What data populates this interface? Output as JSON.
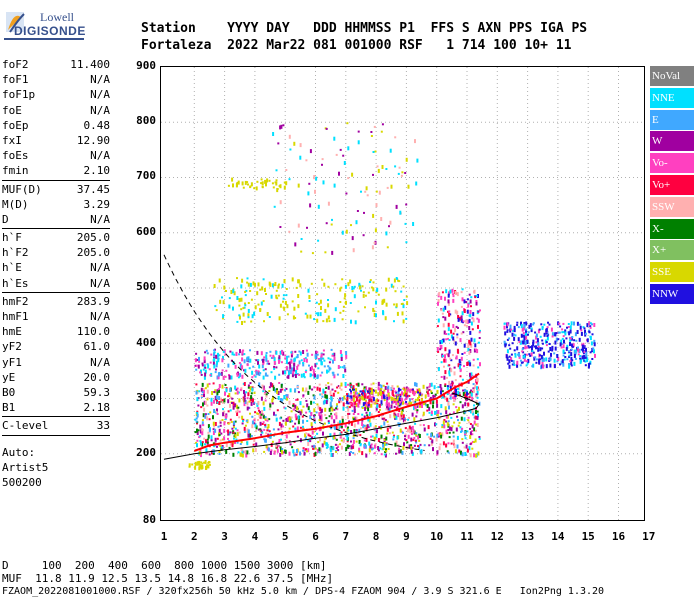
{
  "logo": {
    "line1": "Lowell",
    "line2": "DIGISONDE"
  },
  "header": {
    "line1": "Station    YYYY DAY   DDD HHMMSS P1  FFS S AXN PPS IGA PS",
    "line2": "Fortaleza  2022 Mar22 081 001000 RSF   1 714 100 10+ 11"
  },
  "params": {
    "group1": [
      {
        "name": "foF2",
        "value": "11.400"
      },
      {
        "name": "foF1",
        "value": "N/A"
      },
      {
        "name": "foF1p",
        "value": "N/A"
      },
      {
        "name": "foE",
        "value": "N/A"
      },
      {
        "name": "foEp",
        "value": "0.48"
      },
      {
        "name": "fxI",
        "value": "12.90"
      },
      {
        "name": "foEs",
        "value": "N/A"
      },
      {
        "name": "fmin",
        "value": "2.10"
      }
    ],
    "group2": [
      {
        "name": "MUF(D)",
        "value": "37.45"
      },
      {
        "name": "M(D)",
        "value": "3.29"
      },
      {
        "name": "D",
        "value": "N/A"
      }
    ],
    "group3": [
      {
        "name": "h`F",
        "value": "205.0"
      },
      {
        "name": "h`F2",
        "value": "205.0"
      },
      {
        "name": "h`E",
        "value": "N/A"
      },
      {
        "name": "h`Es",
        "value": "N/A"
      }
    ],
    "group4": [
      {
        "name": "hmF2",
        "value": "283.9"
      },
      {
        "name": "hmF1",
        "value": "N/A"
      },
      {
        "name": "hmE",
        "value": "110.0"
      },
      {
        "name": "yF2",
        "value": "61.0"
      },
      {
        "name": "yF1",
        "value": "N/A"
      },
      {
        "name": "yE",
        "value": "20.0"
      },
      {
        "name": "B0",
        "value": "59.3"
      },
      {
        "name": "B1",
        "value": "2.18"
      }
    ],
    "group5": [
      {
        "name": "C-level",
        "value": "33"
      }
    ],
    "auto": [
      "Auto:",
      "Artist5",
      "500200"
    ]
  },
  "legend": [
    {
      "label": "NoVal",
      "color": "#808080"
    },
    {
      "label": "NNE",
      "color": "#00e0ff"
    },
    {
      "label": "E",
      "color": "#40a8ff"
    },
    {
      "label": "W",
      "color": "#a000a0"
    },
    {
      "label": "Vo-",
      "color": "#ff40c0"
    },
    {
      "label": "Vo+",
      "color": "#ff0040"
    },
    {
      "label": "SSW",
      "color": "#ffb0b0"
    },
    {
      "label": "X-",
      "color": "#008000"
    },
    {
      "label": "X+",
      "color": "#80c060"
    },
    {
      "label": "SSE",
      "color": "#d8d800"
    },
    {
      "label": "NNW",
      "color": "#2010e0"
    }
  ],
  "axes": {
    "y_ticks": [
      "900",
      "800",
      "700",
      "600",
      "500",
      "400",
      "300",
      "200",
      "80"
    ],
    "x_ticks": [
      "1",
      "2",
      "3",
      "4",
      "5",
      "6",
      "7",
      "8",
      "9",
      "10",
      "11",
      "12",
      "13",
      "14",
      "15",
      "16",
      "17"
    ]
  },
  "footer": {
    "line1": "D     100  200  400  600  800 1000 1500 3000 [km]",
    "line2": "MUF  11.8 11.9 12.5 13.5 14.8 16.8 22.6 37.5 [MHz]",
    "line3": "FZAOM_2022081001000.RSF / 320fx256h 50 kHz 5.0 km / DPS-4 FZAOM 904 / 3.9 S 321.6 E   Ion2Png 1.3.20"
  }
}
